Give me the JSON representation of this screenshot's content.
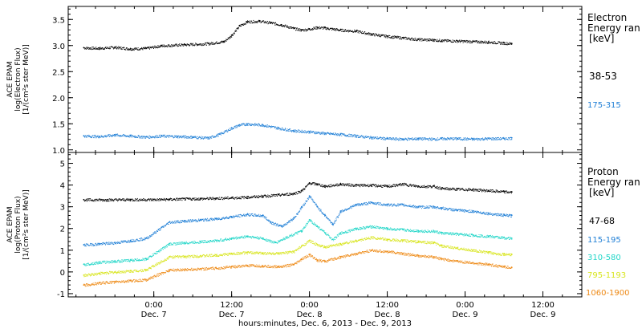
{
  "chart_data": [
    {
      "type": "scatter",
      "panel": "electron",
      "ylabel": [
        "ACE EPAM",
        "log(Electron Flux)",
        "[1/(cm²s ster MeV)]"
      ],
      "ylim": [
        0.95,
        3.75
      ],
      "yticks": [
        "1.0",
        "1.5",
        "2.0",
        "2.5",
        "3.0",
        "3.5"
      ],
      "ytick_values": [
        1.0,
        1.5,
        2.0,
        2.5,
        3.0,
        3.5
      ],
      "legend_title": [
        "Electron",
        "Energy ran",
        "[keV]"
      ],
      "series": [
        {
          "name": "38-53",
          "color": "#000000",
          "points": [
            [
              -0.45,
              2.96
            ],
            [
              -0.35,
              2.95
            ],
            [
              -0.25,
              2.97
            ],
            [
              -0.15,
              2.94
            ],
            [
              -0.05,
              2.95
            ],
            [
              0.05,
              3.0
            ],
            [
              0.2,
              3.02
            ],
            [
              0.35,
              3.04
            ],
            [
              0.45,
              3.08
            ],
            [
              0.5,
              3.2
            ],
            [
              0.55,
              3.38
            ],
            [
              0.6,
              3.46
            ],
            [
              0.68,
              3.47
            ],
            [
              0.75,
              3.44
            ],
            [
              0.82,
              3.4
            ],
            [
              0.9,
              3.33
            ],
            [
              0.95,
              3.3
            ],
            [
              1.0,
              3.32
            ],
            [
              1.05,
              3.35
            ],
            [
              1.1,
              3.34
            ],
            [
              1.2,
              3.3
            ],
            [
              1.3,
              3.28
            ],
            [
              1.4,
              3.22
            ],
            [
              1.5,
              3.18
            ],
            [
              1.6,
              3.15
            ],
            [
              1.7,
              3.12
            ],
            [
              1.8,
              3.11
            ],
            [
              1.85,
              3.1
            ],
            [
              1.95,
              3.09
            ],
            [
              2.05,
              3.08
            ],
            [
              2.15,
              3.07
            ],
            [
              2.25,
              3.05
            ],
            [
              2.3,
              3.04
            ]
          ]
        },
        {
          "name": "175-315",
          "color": "#1f7fd6",
          "points": [
            [
              -0.45,
              1.27
            ],
            [
              -0.35,
              1.26
            ],
            [
              -0.25,
              1.29
            ],
            [
              -0.15,
              1.27
            ],
            [
              -0.05,
              1.25
            ],
            [
              0.05,
              1.27
            ],
            [
              0.15,
              1.26
            ],
            [
              0.25,
              1.25
            ],
            [
              0.35,
              1.23
            ],
            [
              0.42,
              1.3
            ],
            [
              0.5,
              1.42
            ],
            [
              0.55,
              1.48
            ],
            [
              0.6,
              1.5
            ],
            [
              0.7,
              1.48
            ],
            [
              0.8,
              1.42
            ],
            [
              0.9,
              1.37
            ],
            [
              1.0,
              1.35
            ],
            [
              1.1,
              1.32
            ],
            [
              1.2,
              1.3
            ],
            [
              1.3,
              1.27
            ],
            [
              1.4,
              1.24
            ],
            [
              1.5,
              1.22
            ],
            [
              1.6,
              1.21
            ],
            [
              1.7,
              1.22
            ],
            [
              1.8,
              1.21
            ],
            [
              1.85,
              1.22
            ],
            [
              1.95,
              1.22
            ],
            [
              2.05,
              1.21
            ],
            [
              2.15,
              1.22
            ],
            [
              2.25,
              1.22
            ],
            [
              2.3,
              1.23
            ]
          ]
        }
      ]
    },
    {
      "type": "scatter",
      "panel": "proton",
      "ylabel": [
        "ACE EPAM",
        "log(Proton Flux)",
        "[1/(cm²s ster MeV)]"
      ],
      "ylim": [
        -1.15,
        5.5
      ],
      "yticks": [
        "-1",
        "0",
        "1",
        "2",
        "3",
        "4",
        "5"
      ],
      "ytick_values": [
        -1,
        0,
        1,
        2,
        3,
        4,
        5
      ],
      "legend_title": [
        "Proton",
        "Energy ran",
        "[keV]"
      ],
      "series": [
        {
          "name": "47-68",
          "color": "#000000",
          "points": [
            [
              -0.45,
              3.33
            ],
            [
              -0.3,
              3.33
            ],
            [
              -0.15,
              3.34
            ],
            [
              0.0,
              3.34
            ],
            [
              0.1,
              3.35
            ],
            [
              0.2,
              3.37
            ],
            [
              0.3,
              3.38
            ],
            [
              0.4,
              3.4
            ],
            [
              0.5,
              3.42
            ],
            [
              0.6,
              3.45
            ],
            [
              0.7,
              3.5
            ],
            [
              0.8,
              3.55
            ],
            [
              0.9,
              3.62
            ],
            [
              0.95,
              3.75
            ],
            [
              1.0,
              4.1
            ],
            [
              1.05,
              4.05
            ],
            [
              1.1,
              3.95
            ],
            [
              1.2,
              4.05
            ],
            [
              1.3,
              4.0
            ],
            [
              1.4,
              4.0
            ],
            [
              1.5,
              3.95
            ],
            [
              1.6,
              4.05
            ],
            [
              1.7,
              3.95
            ],
            [
              1.8,
              3.95
            ],
            [
              1.85,
              3.85
            ],
            [
              1.95,
              3.82
            ],
            [
              2.05,
              3.8
            ],
            [
              2.15,
              3.75
            ],
            [
              2.25,
              3.7
            ],
            [
              2.3,
              3.68
            ]
          ]
        },
        {
          "name": "115-195",
          "color": "#1f7fd6",
          "points": [
            [
              -0.45,
              1.25
            ],
            [
              -0.35,
              1.3
            ],
            [
              -0.25,
              1.35
            ],
            [
              -0.15,
              1.45
            ],
            [
              -0.05,
              1.55
            ],
            [
              0.1,
              2.3
            ],
            [
              0.2,
              2.35
            ],
            [
              0.3,
              2.4
            ],
            [
              0.4,
              2.45
            ],
            [
              0.5,
              2.55
            ],
            [
              0.6,
              2.65
            ],
            [
              0.7,
              2.6
            ],
            [
              0.75,
              2.3
            ],
            [
              0.82,
              2.1
            ],
            [
              0.9,
              2.5
            ],
            [
              0.95,
              3.0
            ],
            [
              1.0,
              3.5
            ],
            [
              1.05,
              3.0
            ],
            [
              1.1,
              2.6
            ],
            [
              1.15,
              2.2
            ],
            [
              1.2,
              2.8
            ],
            [
              1.3,
              3.1
            ],
            [
              1.4,
              3.2
            ],
            [
              1.5,
              3.1
            ],
            [
              1.6,
              3.1
            ],
            [
              1.7,
              3.0
            ],
            [
              1.8,
              3.0
            ],
            [
              1.85,
              2.95
            ],
            [
              1.95,
              2.85
            ],
            [
              2.05,
              2.8
            ],
            [
              2.15,
              2.7
            ],
            [
              2.25,
              2.62
            ],
            [
              2.3,
              2.6
            ]
          ]
        },
        {
          "name": "310-580",
          "color": "#22d6c8",
          "points": [
            [
              -0.45,
              0.35
            ],
            [
              -0.35,
              0.45
            ],
            [
              -0.25,
              0.5
            ],
            [
              -0.15,
              0.55
            ],
            [
              -0.05,
              0.6
            ],
            [
              0.1,
              1.3
            ],
            [
              0.2,
              1.35
            ],
            [
              0.3,
              1.4
            ],
            [
              0.4,
              1.45
            ],
            [
              0.5,
              1.55
            ],
            [
              0.6,
              1.65
            ],
            [
              0.7,
              1.55
            ],
            [
              0.78,
              1.35
            ],
            [
              0.85,
              1.6
            ],
            [
              0.95,
              1.9
            ],
            [
              1.0,
              2.4
            ],
            [
              1.05,
              2.1
            ],
            [
              1.1,
              1.8
            ],
            [
              1.15,
              1.5
            ],
            [
              1.2,
              1.8
            ],
            [
              1.3,
              2.0
            ],
            [
              1.4,
              2.1
            ],
            [
              1.5,
              2.0
            ],
            [
              1.6,
              1.95
            ],
            [
              1.7,
              1.9
            ],
            [
              1.8,
              1.88
            ],
            [
              1.85,
              1.8
            ],
            [
              1.95,
              1.75
            ],
            [
              2.05,
              1.7
            ],
            [
              2.15,
              1.65
            ],
            [
              2.25,
              1.58
            ],
            [
              2.3,
              1.55
            ]
          ]
        },
        {
          "name": "795-1193",
          "color": "#d8e51e",
          "points": [
            [
              -0.45,
              -0.15
            ],
            [
              -0.35,
              -0.05
            ],
            [
              -0.25,
              0.0
            ],
            [
              -0.15,
              0.05
            ],
            [
              -0.05,
              0.1
            ],
            [
              0.1,
              0.7
            ],
            [
              0.2,
              0.72
            ],
            [
              0.3,
              0.75
            ],
            [
              0.4,
              0.78
            ],
            [
              0.5,
              0.85
            ],
            [
              0.6,
              0.9
            ],
            [
              0.7,
              0.88
            ],
            [
              0.8,
              0.85
            ],
            [
              0.9,
              0.95
            ],
            [
              0.95,
              1.2
            ],
            [
              1.0,
              1.45
            ],
            [
              1.05,
              1.25
            ],
            [
              1.1,
              1.15
            ],
            [
              1.2,
              1.3
            ],
            [
              1.3,
              1.45
            ],
            [
              1.4,
              1.6
            ],
            [
              1.5,
              1.5
            ],
            [
              1.6,
              1.45
            ],
            [
              1.7,
              1.4
            ],
            [
              1.8,
              1.35
            ],
            [
              1.85,
              1.2
            ],
            [
              1.95,
              1.1
            ],
            [
              2.05,
              1.0
            ],
            [
              2.15,
              0.9
            ],
            [
              2.25,
              0.82
            ],
            [
              2.3,
              0.8
            ]
          ]
        },
        {
          "name": "1060-1900",
          "color": "#ee8a16",
          "points": [
            [
              -0.45,
              -0.6
            ],
            [
              -0.35,
              -0.5
            ],
            [
              -0.25,
              -0.45
            ],
            [
              -0.15,
              -0.4
            ],
            [
              -0.05,
              -0.35
            ],
            [
              0.1,
              0.1
            ],
            [
              0.2,
              0.12
            ],
            [
              0.3,
              0.15
            ],
            [
              0.4,
              0.18
            ],
            [
              0.5,
              0.25
            ],
            [
              0.6,
              0.3
            ],
            [
              0.7,
              0.28
            ],
            [
              0.8,
              0.25
            ],
            [
              0.9,
              0.35
            ],
            [
              0.95,
              0.6
            ],
            [
              1.0,
              0.8
            ],
            [
              1.05,
              0.55
            ],
            [
              1.1,
              0.5
            ],
            [
              1.2,
              0.7
            ],
            [
              1.3,
              0.85
            ],
            [
              1.4,
              1.0
            ],
            [
              1.5,
              0.95
            ],
            [
              1.6,
              0.85
            ],
            [
              1.7,
              0.75
            ],
            [
              1.8,
              0.7
            ],
            [
              1.85,
              0.6
            ],
            [
              1.95,
              0.5
            ],
            [
              2.05,
              0.42
            ],
            [
              2.15,
              0.35
            ],
            [
              2.25,
              0.25
            ],
            [
              2.3,
              0.2
            ]
          ]
        }
      ]
    }
  ],
  "xaxis": {
    "xlim": [
      -0.55,
      2.75
    ],
    "tick_positions": [
      0,
      0.5,
      1,
      1.5,
      2,
      2.5
    ],
    "ticks": [
      {
        "line1": "0:00",
        "line2": "Dec. 7"
      },
      {
        "line1": "12:00",
        "line2": "Dec. 7"
      },
      {
        "line1": "0:00",
        "line2": "Dec. 8"
      },
      {
        "line1": "12:00",
        "line2": "Dec. 8"
      },
      {
        "line1": "0:00",
        "line2": "Dec. 9"
      },
      {
        "line1": "12:00",
        "line2": "Dec. 9"
      }
    ],
    "label": "hours:minutes, Dec.  6, 2013 - Dec.  9, 2013"
  }
}
